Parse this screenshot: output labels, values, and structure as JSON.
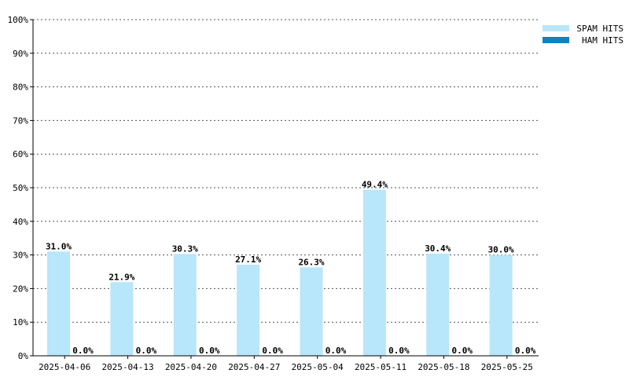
{
  "chart_data": {
    "type": "bar",
    "title": "",
    "xlabel": "",
    "ylabel": "",
    "ylim": [
      0,
      100
    ],
    "y_ticks": [
      "0%",
      "10%",
      "20%",
      "30%",
      "40%",
      "50%",
      "60%",
      "70%",
      "80%",
      "90%",
      "100%"
    ],
    "grid": true,
    "legend_position": "top-right",
    "categories": [
      "2025-04-06",
      "2025-04-13",
      "2025-04-20",
      "2025-04-27",
      "2025-05-04",
      "2025-05-11",
      "2025-05-18",
      "2025-05-25"
    ],
    "series": [
      {
        "name": "SPAM HITS",
        "color": "#b8e6fb",
        "values": [
          31.0,
          21.9,
          30.3,
          27.1,
          26.3,
          49.4,
          30.4,
          30.0
        ],
        "labels": [
          "31.0%",
          "21.9%",
          "30.3%",
          "27.1%",
          "26.3%",
          "49.4%",
          "30.4%",
          "30.0%"
        ]
      },
      {
        "name": "HAM HITS",
        "color": "#0f83c0",
        "values": [
          0,
          0,
          0,
          0,
          0,
          0,
          0,
          0
        ],
        "labels": [
          "0.0%",
          "0.0%",
          "0.0%",
          "0.0%",
          "0.0%",
          "0.0%",
          "0.0%",
          "0.0%"
        ]
      }
    ]
  }
}
